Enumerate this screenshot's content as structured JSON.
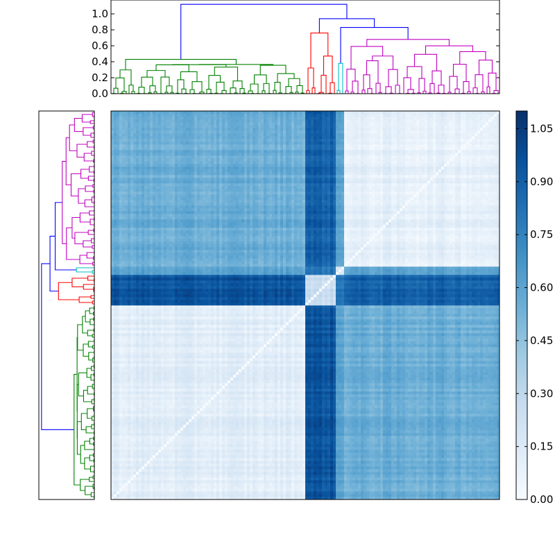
{
  "chart_data": [
    {
      "type": "dendrogram",
      "position": "top",
      "yticks": [
        "0.0",
        "0.2",
        "0.4",
        "0.6",
        "0.8",
        "1.0"
      ],
      "ylim": [
        0,
        1.18
      ],
      "root_height": 1.12,
      "clusters": [
        {
          "name": "green",
          "color": "#008000",
          "leaves": 70,
          "height": 0.43
        },
        {
          "name": "red",
          "color": "#ff0000",
          "leaves": 11,
          "height": 0.76
        },
        {
          "name": "cyan",
          "color": "#00bfbf",
          "leaves": 3,
          "height": 0.38
        },
        {
          "name": "magenta",
          "color": "#bf00bf",
          "leaves": 56,
          "height": 0.68
        }
      ],
      "blue_links": [
        0.94,
        0.83,
        1.12
      ]
    },
    {
      "type": "dendrogram",
      "position": "left",
      "mirrors": "top"
    },
    {
      "type": "heatmap",
      "description_of_values": "pairwise distance matrix ordered by dendrogram",
      "n": 140,
      "colormap": "Blues",
      "colorbar": {
        "ticks": [
          "0.00",
          "0.15",
          "0.30",
          "0.45",
          "0.60",
          "0.75",
          "0.90",
          "1.05"
        ],
        "range": [
          0,
          1.1
        ]
      },
      "block_distances": [
        [
          0.12,
          0.95,
          0.6,
          0.55
        ],
        [
          0.95,
          0.25,
          0.8,
          0.9
        ],
        [
          0.6,
          0.8,
          0.15,
          0.6
        ],
        [
          0.55,
          0.9,
          0.6,
          0.1
        ]
      ]
    }
  ],
  "colors": {
    "blue_link": "#0000ff",
    "frame": "#000000"
  }
}
